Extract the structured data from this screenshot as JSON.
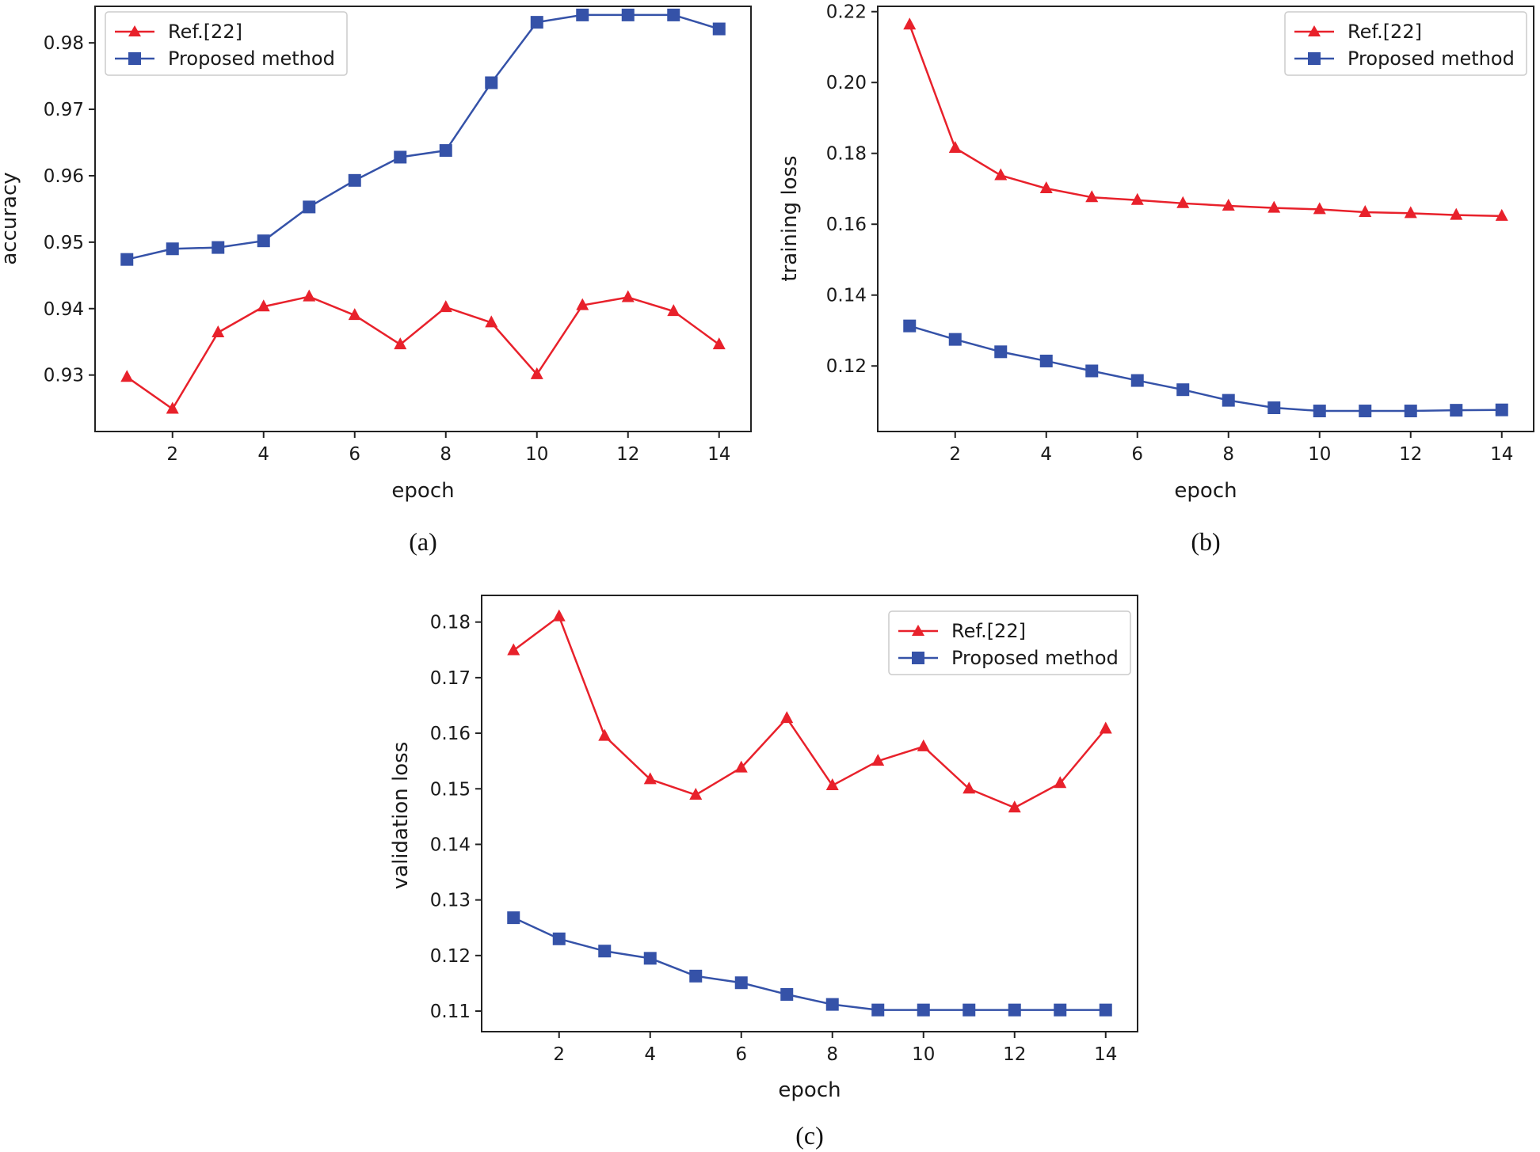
{
  "colors": {
    "ref": "#e8212b",
    "proposed": "#3552a8"
  },
  "chart_data": [
    {
      "id": "a",
      "type": "line",
      "caption": "(a)",
      "xlabel": "epoch",
      "ylabel": "accuracy",
      "xlim": [
        0.3,
        14.7
      ],
      "ylim": [
        0.9215,
        0.9855
      ],
      "xticks": [
        2,
        4,
        6,
        8,
        10,
        12,
        14
      ],
      "yticks": [
        0.93,
        0.94,
        0.95,
        0.96,
        0.97,
        0.98
      ],
      "ytick_labels": [
        "0.93",
        "0.94",
        "0.95",
        "0.96",
        "0.97",
        "0.98"
      ],
      "legend_position": "top-left",
      "x": [
        1,
        2,
        3,
        4,
        5,
        6,
        7,
        8,
        9,
        10,
        11,
        12,
        13,
        14
      ],
      "series": [
        {
          "name": "Ref.[22]",
          "marker": "triangle",
          "color": "#e8212b",
          "values": [
            0.9297,
            0.9249,
            0.9364,
            0.9403,
            0.9418,
            0.939,
            0.9346,
            0.9402,
            0.9379,
            0.9301,
            0.9405,
            0.9417,
            0.9396,
            0.9346
          ]
        },
        {
          "name": "Proposed method",
          "marker": "square",
          "color": "#3552a8",
          "values": [
            0.9474,
            0.949,
            0.9492,
            0.9502,
            0.9553,
            0.9593,
            0.9628,
            0.9638,
            0.974,
            0.9831,
            0.9842,
            0.9842,
            0.9842,
            0.9821
          ]
        }
      ]
    },
    {
      "id": "b",
      "type": "line",
      "caption": "(b)",
      "xlabel": "epoch",
      "ylabel": "training loss",
      "xlim": [
        0.3,
        14.7
      ],
      "ylim": [
        0.1015,
        0.2215
      ],
      "xticks": [
        2,
        4,
        6,
        8,
        10,
        12,
        14
      ],
      "yticks": [
        0.12,
        0.14,
        0.16,
        0.18,
        0.2,
        0.22
      ],
      "ytick_labels": [
        "0.12",
        "0.14",
        "0.16",
        "0.18",
        "0.20",
        "0.22"
      ],
      "legend_position": "top-right",
      "x": [
        1,
        2,
        3,
        4,
        5,
        6,
        7,
        8,
        9,
        10,
        11,
        12,
        13,
        14
      ],
      "series": [
        {
          "name": "Ref.[22]",
          "marker": "triangle",
          "color": "#e8212b",
          "values": [
            0.2163,
            0.1815,
            0.1738,
            0.1701,
            0.1676,
            0.1668,
            0.1659,
            0.1652,
            0.1646,
            0.1642,
            0.1634,
            0.1631,
            0.1626,
            0.1623
          ]
        },
        {
          "name": "Proposed method",
          "marker": "square",
          "color": "#3552a8",
          "values": [
            0.1313,
            0.1275,
            0.124,
            0.1214,
            0.1186,
            0.1159,
            0.1133,
            0.1103,
            0.1082,
            0.1073,
            0.1073,
            0.1073,
            0.1075,
            0.1076
          ]
        }
      ]
    },
    {
      "id": "c",
      "type": "line",
      "caption": "(c)",
      "xlabel": "epoch",
      "ylabel": "validation loss",
      "xlim": [
        0.3,
        14.7
      ],
      "ylim": [
        0.1063,
        0.1848
      ],
      "xticks": [
        2,
        4,
        6,
        8,
        10,
        12,
        14
      ],
      "yticks": [
        0.11,
        0.12,
        0.13,
        0.14,
        0.15,
        0.16,
        0.17,
        0.18
      ],
      "ytick_labels": [
        "0.11",
        "0.12",
        "0.13",
        "0.14",
        "0.15",
        "0.16",
        "0.17",
        "0.18"
      ],
      "legend_position": "top-right",
      "x": [
        1,
        2,
        3,
        4,
        5,
        6,
        7,
        8,
        9,
        10,
        11,
        12,
        13,
        14
      ],
      "series": [
        {
          "name": "Ref.[22]",
          "marker": "triangle",
          "color": "#e8212b",
          "values": [
            0.1749,
            0.181,
            0.1595,
            0.1517,
            0.1489,
            0.1538,
            0.1627,
            0.1506,
            0.155,
            0.1576,
            0.15,
            0.1466,
            0.151,
            0.1608
          ]
        },
        {
          "name": "Proposed method",
          "marker": "square",
          "color": "#3552a8",
          "values": [
            0.1268,
            0.123,
            0.1208,
            0.1195,
            0.1163,
            0.1151,
            0.113,
            0.1112,
            0.1102,
            0.1102,
            0.1102,
            0.1102,
            0.1102,
            0.1102
          ]
        }
      ]
    }
  ]
}
